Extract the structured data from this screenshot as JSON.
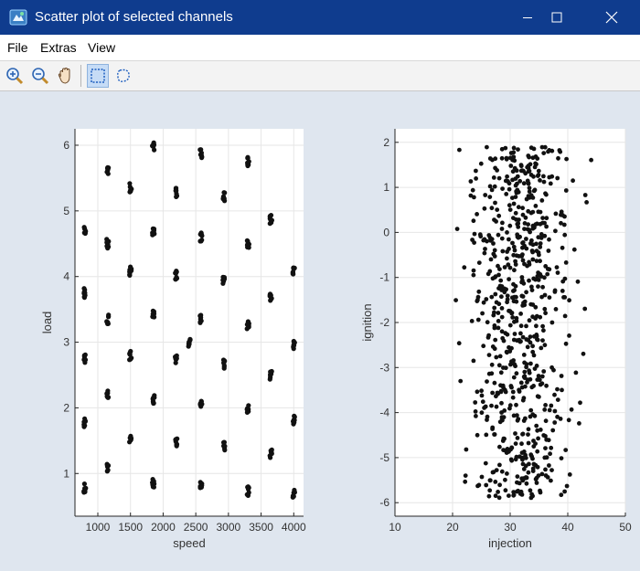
{
  "window": {
    "title": "Scatter plot of selected channels",
    "icon": "matlab-figure-icon"
  },
  "menu": {
    "items": [
      "File",
      "Extras",
      "View"
    ]
  },
  "toolbar": {
    "tools": [
      {
        "name": "zoom-in-icon",
        "active": false
      },
      {
        "name": "zoom-out-icon",
        "active": false
      },
      {
        "name": "pan-hand-icon",
        "active": false
      },
      {
        "name": "rectangle-select-icon",
        "active": true
      },
      {
        "name": "lasso-select-icon",
        "active": false
      }
    ]
  },
  "colors": {
    "titlebar": "#0f3c8e",
    "figure_bg": "#dfe6ef",
    "axes_bg": "#ffffff",
    "grid": "#e6e6e6",
    "marker": "#111111"
  },
  "chart_data": [
    {
      "type": "scatter",
      "title": "",
      "xlabel": "speed",
      "ylabel": "load",
      "xlim": [
        650,
        4150
      ],
      "ylim": [
        0.35,
        6.25
      ],
      "xticks": [
        1000,
        1500,
        2000,
        2500,
        3000,
        3500,
        4000
      ],
      "yticks": [
        1,
        2,
        3,
        4,
        5,
        6
      ],
      "grid": true,
      "clusters": [
        [
          800,
          0.78
        ],
        [
          800,
          1.78
        ],
        [
          800,
          2.75
        ],
        [
          800,
          3.75
        ],
        [
          800,
          4.72
        ],
        [
          1150,
          1.08
        ],
        [
          1150,
          2.2
        ],
        [
          1150,
          3.35
        ],
        [
          1150,
          4.5
        ],
        [
          1150,
          5.6
        ],
        [
          1500,
          1.52
        ],
        [
          1500,
          2.8
        ],
        [
          1500,
          4.08
        ],
        [
          1500,
          5.35
        ],
        [
          1850,
          0.85
        ],
        [
          1850,
          2.12
        ],
        [
          1850,
          3.42
        ],
        [
          1850,
          4.68
        ],
        [
          1850,
          5.98
        ],
        [
          2200,
          1.48
        ],
        [
          2200,
          2.75
        ],
        [
          2200,
          4.02
        ],
        [
          2200,
          5.28
        ],
        [
          2400,
          3.0
        ],
        [
          2580,
          0.8
        ],
        [
          2580,
          2.05
        ],
        [
          2580,
          3.35
        ],
        [
          2580,
          4.6
        ],
        [
          2580,
          5.88
        ],
        [
          2930,
          1.42
        ],
        [
          2930,
          2.67
        ],
        [
          2930,
          3.95
        ],
        [
          2930,
          5.22
        ],
        [
          3300,
          0.73
        ],
        [
          3300,
          1.98
        ],
        [
          3300,
          3.25
        ],
        [
          3300,
          4.5
        ],
        [
          3300,
          5.75
        ],
        [
          3650,
          1.3
        ],
        [
          3650,
          2.5
        ],
        [
          3650,
          3.68
        ],
        [
          3650,
          4.87
        ],
        [
          4000,
          0.68
        ],
        [
          4000,
          1.82
        ],
        [
          4000,
          2.95
        ],
        [
          4000,
          4.08
        ]
      ]
    },
    {
      "type": "scatter",
      "title": "",
      "xlabel": "injection",
      "ylabel": "ignition",
      "xlim": [
        10,
        50
      ],
      "ylim": [
        -6.3,
        2.3
      ],
      "xticks": [
        10,
        20,
        30,
        40,
        50
      ],
      "yticks": [
        2,
        1,
        0,
        -1,
        -2,
        -3,
        -4,
        -5,
        -6
      ],
      "grid": true,
      "point_count": 700,
      "distribution": {
        "x_range": [
          12,
          47
        ],
        "y_range": [
          -5.9,
          1.9
        ],
        "x_center": 32,
        "x_spread": 6.5
      }
    }
  ]
}
